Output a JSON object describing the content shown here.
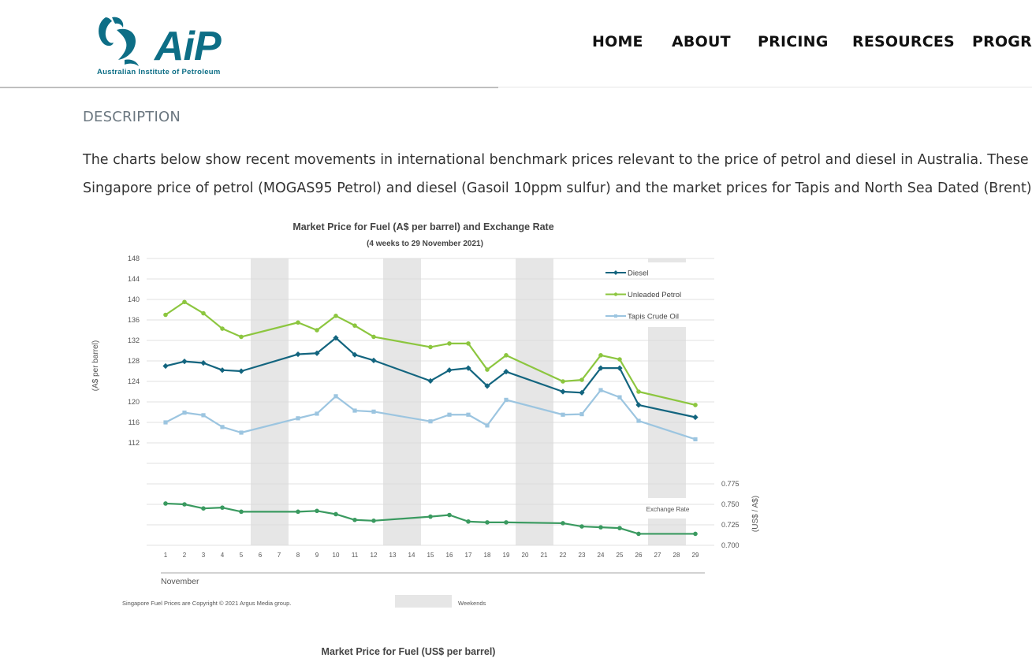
{
  "header": {
    "logo_wordmark": "AiP",
    "logo_subtitle": "Australian Institute of Petroleum",
    "nav": [
      "HOME",
      "ABOUT",
      "PRICING",
      "RESOURCES",
      "PROGRA"
    ]
  },
  "content": {
    "section_title": "DESCRIPTION",
    "description_lines": [
      "The charts below show recent movements in international benchmark prices relevant to the price of petrol and diesel in Australia. These r",
      "Singapore price of petrol (MOGAS95 Petrol) and diesel (Gasoil 10ppm sulfur) and the market prices for Tapis and North Sea Dated (Brent)"
    ]
  },
  "chart_data": [
    {
      "type": "line",
      "title": "Market Price for Fuel (A$ per barrel) and Exchange Rate",
      "subtitle": "(4 weeks to 29 November 2021)",
      "ylabel": "(A$ per barrel)",
      "y2label": "(US$ / A$)",
      "xlabel": "November",
      "x": [
        1,
        2,
        3,
        4,
        5,
        6,
        7,
        8,
        9,
        10,
        11,
        12,
        13,
        14,
        15,
        16,
        17,
        18,
        19,
        20,
        21,
        22,
        23,
        24,
        25,
        26,
        27,
        28,
        29
      ],
      "yticks": [
        112,
        116,
        120,
        124,
        128,
        132,
        136,
        140,
        144,
        148
      ],
      "ylim": [
        112,
        148
      ],
      "y2ticks": [
        "0.700",
        "0.725",
        "0.750",
        "0.775"
      ],
      "y2lim": [
        0.7,
        0.775
      ],
      "weekends": [
        [
          6,
          7
        ],
        [
          13,
          14
        ],
        [
          20,
          21
        ],
        [
          27,
          28
        ]
      ],
      "series": [
        {
          "name": "Diesel",
          "color": "#13657f",
          "marker": "diamond",
          "points": [
            [
              1,
              127.0
            ],
            [
              2,
              127.9
            ],
            [
              3,
              127.6
            ],
            [
              4,
              126.2
            ],
            [
              5,
              126.0
            ],
            [
              8,
              129.3
            ],
            [
              9,
              129.5
            ],
            [
              10,
              132.5
            ],
            [
              11,
              129.2
            ],
            [
              12,
              128.1
            ],
            [
              15,
              124.1
            ],
            [
              16,
              126.2
            ],
            [
              17,
              126.6
            ],
            [
              18,
              123.1
            ],
            [
              19,
              125.9
            ],
            [
              22,
              122.0
            ],
            [
              23,
              121.8
            ],
            [
              24,
              126.6
            ],
            [
              25,
              126.6
            ],
            [
              26,
              119.4
            ],
            [
              29,
              117.0
            ]
          ]
        },
        {
          "name": "Unleaded Petrol",
          "color": "#8cc63f",
          "marker": "dot",
          "points": [
            [
              1,
              137.0
            ],
            [
              2,
              139.5
            ],
            [
              3,
              137.3
            ],
            [
              4,
              134.3
            ],
            [
              5,
              132.7
            ],
            [
              8,
              135.5
            ],
            [
              9,
              134.0
            ],
            [
              10,
              136.8
            ],
            [
              11,
              134.9
            ],
            [
              12,
              132.7
            ],
            [
              15,
              130.7
            ],
            [
              16,
              131.4
            ],
            [
              17,
              131.4
            ],
            [
              18,
              126.3
            ],
            [
              19,
              129.1
            ],
            [
              22,
              124.0
            ],
            [
              23,
              124.3
            ],
            [
              24,
              129.1
            ],
            [
              25,
              128.3
            ],
            [
              26,
              122.0
            ],
            [
              29,
              119.4
            ]
          ]
        },
        {
          "name": "Tapis Crude Oil",
          "color": "#9cc5e0",
          "marker": "square",
          "points": [
            [
              1,
              116.0
            ],
            [
              2,
              117.9
            ],
            [
              3,
              117.4
            ],
            [
              4,
              115.1
            ],
            [
              5,
              114.0
            ],
            [
              8,
              116.8
            ],
            [
              9,
              117.7
            ],
            [
              10,
              121.1
            ],
            [
              11,
              118.3
            ],
            [
              12,
              118.1
            ],
            [
              15,
              116.2
            ],
            [
              16,
              117.5
            ],
            [
              17,
              117.5
            ],
            [
              18,
              115.4
            ],
            [
              19,
              120.4
            ],
            [
              22,
              117.5
            ],
            [
              23,
              117.6
            ],
            [
              24,
              122.3
            ],
            [
              25,
              120.9
            ],
            [
              26,
              116.3
            ],
            [
              29,
              112.7
            ]
          ]
        },
        {
          "name": "Exchange Rate",
          "color": "#3a9a60",
          "marker": "dot",
          "points": [
            [
              1,
              0.751
            ],
            [
              2,
              0.75
            ],
            [
              3,
              0.745
            ],
            [
              4,
              0.746
            ],
            [
              5,
              0.741
            ],
            [
              8,
              0.741
            ],
            [
              9,
              0.742
            ],
            [
              10,
              0.738
            ],
            [
              11,
              0.731
            ],
            [
              12,
              0.73
            ],
            [
              15,
              0.735
            ],
            [
              16,
              0.737
            ],
            [
              17,
              0.729
            ],
            [
              18,
              0.728
            ],
            [
              19,
              0.728
            ],
            [
              22,
              0.727
            ],
            [
              23,
              0.723
            ],
            [
              24,
              0.722
            ],
            [
              25,
              0.721
            ],
            [
              26,
              0.714
            ],
            [
              29,
              0.714
            ]
          ]
        }
      ],
      "legend_position": "top-right",
      "footnote": "Singapore Fuel Prices are Copyright © 2021 Argus Media group.",
      "weekends_legend": "Weekends"
    },
    {
      "type": "line",
      "title": "Market Price for Fuel (US$ per barrel)"
    }
  ],
  "colors": {
    "brand": "#0d6e86",
    "weekend_band": "#e6e6e6"
  }
}
